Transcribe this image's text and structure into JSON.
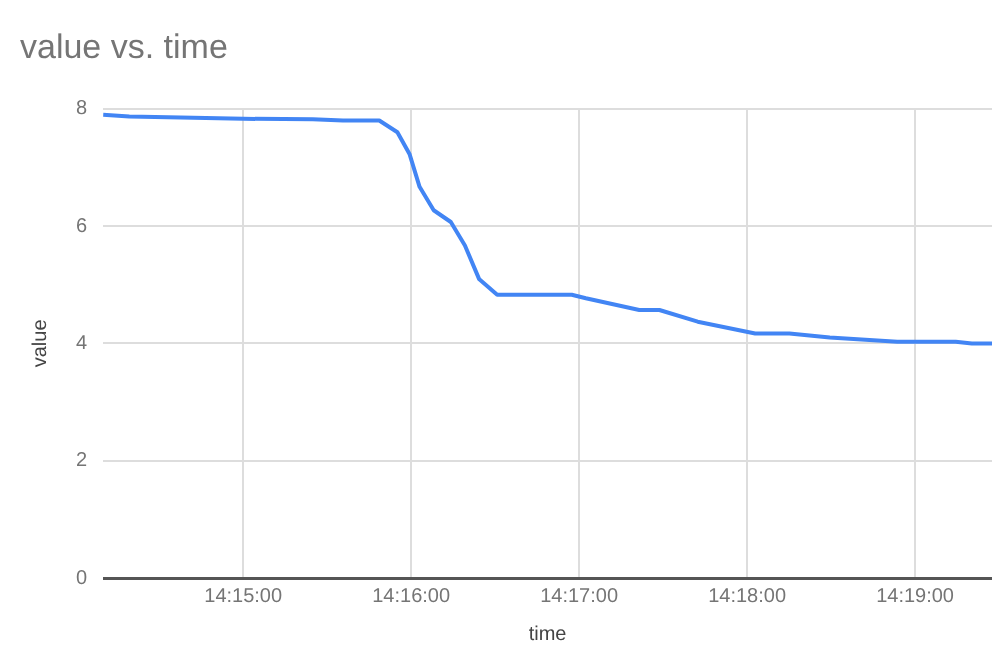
{
  "chart_data": {
    "type": "line",
    "title": "value vs. time",
    "xlabel": "time",
    "ylabel": "value",
    "x": [
      14.2361,
      14.2387,
      14.2438,
      14.25,
      14.2569,
      14.2599,
      14.2635,
      14.2653,
      14.2665,
      14.2675,
      14.2689,
      14.2706,
      14.272,
      14.2734,
      14.2752,
      14.2774,
      14.2826,
      14.284,
      14.2893,
      14.2913,
      14.2951,
      14.3008,
      14.3042,
      14.3082,
      14.3149,
      14.3207,
      14.3223,
      14.3243
    ],
    "series": [
      {
        "color": "#4285f4",
        "values": [
          7.9,
          7.87,
          7.85,
          7.83,
          7.82,
          7.8,
          7.8,
          7.6,
          7.23,
          6.67,
          6.27,
          6.07,
          5.67,
          5.1,
          4.83,
          4.83,
          4.83,
          4.77,
          4.57,
          4.57,
          4.37,
          4.17,
          4.17,
          4.1,
          4.03,
          4.03,
          4.0,
          4.0
        ]
      }
    ],
    "xlim": [
      14.2361,
      14.3243
    ],
    "xticks": [
      {
        "value": 14.25,
        "label": "14:15:00"
      },
      {
        "value": 14.266667,
        "label": "14:16:00"
      },
      {
        "value": 14.283333,
        "label": "14:17:00"
      },
      {
        "value": 14.3,
        "label": "14:18:00"
      },
      {
        "value": 14.316667,
        "label": "14:19:00"
      }
    ],
    "ylim": [
      0,
      8
    ],
    "yticks": [
      0,
      2,
      4,
      6,
      8
    ],
    "grid": true,
    "legend": false,
    "marker": "none",
    "line_style": "solid"
  }
}
